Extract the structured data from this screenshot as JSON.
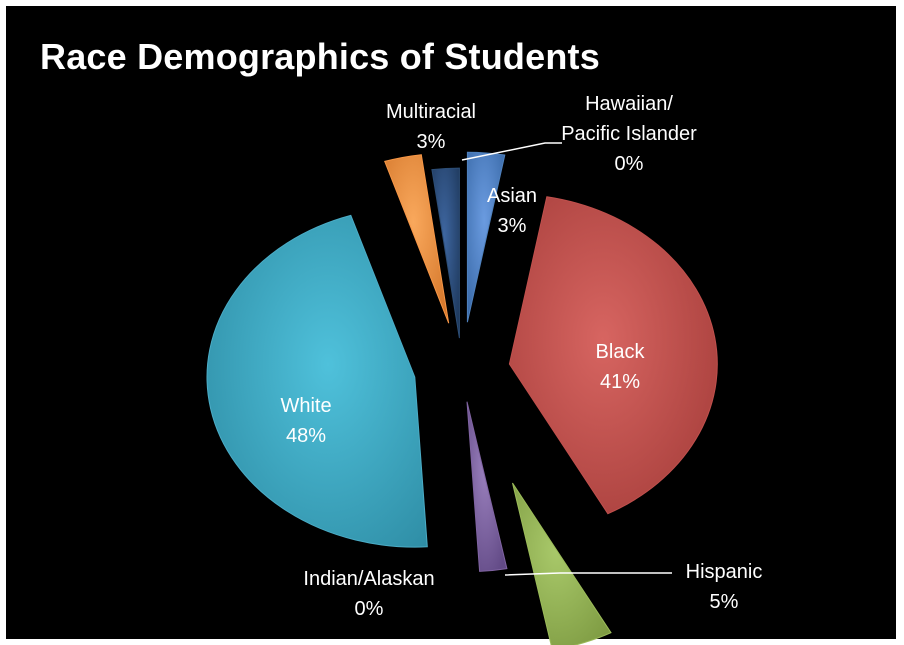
{
  "chart_data": {
    "type": "pie",
    "title": "Race Demographics of Students",
    "categories": [
      "Asian",
      "Black",
      "Hispanic",
      "Indian/Alaskan",
      "White",
      "Multiracial",
      "Hawaiian/ Pacific Islander"
    ],
    "values": [
      3,
      41,
      5,
      0,
      48,
      3,
      0
    ],
    "labels": [
      {
        "name": "Asian",
        "pct": "3%"
      },
      {
        "name": "Black",
        "pct": "41%"
      },
      {
        "name": "Hispanic",
        "pct": "5%"
      },
      {
        "name": "Indian/Alaskan",
        "pct": "0%"
      },
      {
        "name": "White",
        "pct": "48%"
      },
      {
        "name": "Multiracial",
        "pct": "3%"
      },
      {
        "name_lines": [
          "Hawaiian/",
          "Pacific Islander"
        ],
        "pct": "0%"
      }
    ],
    "colors": [
      "#4f81bd",
      "#c0504d",
      "#9bbb59",
      "#8064a2",
      "#4bacc6",
      "#f79646",
      "#2c4d75"
    ],
    "background": "#000000",
    "legend": "none"
  }
}
